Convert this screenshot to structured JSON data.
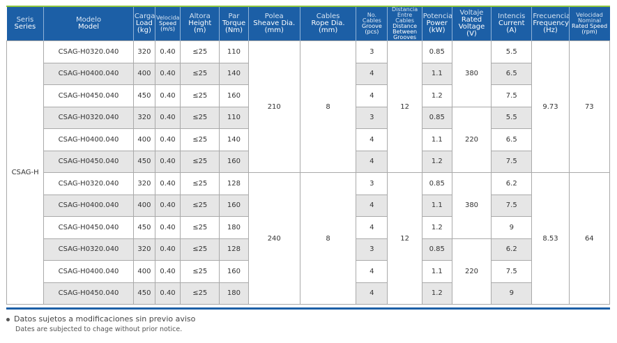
{
  "headers": [
    {
      "es": "Seris",
      "en": "Series"
    },
    {
      "es": "Modelo",
      "en": "Model"
    },
    {
      "es": "Carga",
      "en": "Load (kg)"
    },
    {
      "es": "Velocidad",
      "en": "Speed (m/s)"
    },
    {
      "es": "Altora",
      "en": "Height (m)"
    },
    {
      "es": "Par",
      "en": "Torque (Nm)"
    },
    {
      "es": "Polea",
      "en": "Sheave Dia. (mm)"
    },
    {
      "es": "Cables",
      "en": "Rope Dia. (mm)"
    },
    {
      "es": "No. Cables",
      "en": "Groove (pcs)"
    },
    {
      "es": "Distancia Entre Cables",
      "en": "Distance Between Grooves"
    },
    {
      "es": "Potencia",
      "en": "Power (kW)"
    },
    {
      "es": "Voltaje",
      "en": "Rated Voltage (V)"
    },
    {
      "es": "Intencis",
      "en": "Current (A)"
    },
    {
      "es": "Frecuencia",
      "en": "Frequency (Hz)"
    },
    {
      "es": "Velocidad Nominal",
      "en": "Rated Speed (rpm)"
    }
  ],
  "series": "CSAG-H",
  "rows": [
    {
      "model": "CSAG-H0320.040",
      "load": "320",
      "speed": "0.40",
      "height": "≤25",
      "torque": "110",
      "groove": "3",
      "power": "0.85",
      "current": "5.5"
    },
    {
      "model": "CSAG-H0400.040",
      "load": "400",
      "speed": "0.40",
      "height": "≤25",
      "torque": "140",
      "groove": "4",
      "power": "1.1",
      "current": "6.5"
    },
    {
      "model": "CSAG-H0450.040",
      "load": "450",
      "speed": "0.40",
      "height": "≤25",
      "torque": "160",
      "groove": "4",
      "power": "1.2",
      "current": "7.5"
    },
    {
      "model": "CSAG-H0320.040",
      "load": "320",
      "speed": "0.40",
      "height": "≤25",
      "torque": "110",
      "groove": "3",
      "power": "0.85",
      "current": "5.5"
    },
    {
      "model": "CSAG-H0400.040",
      "load": "400",
      "speed": "0.40",
      "height": "≤25",
      "torque": "140",
      "groove": "4",
      "power": "1.1",
      "current": "6.5"
    },
    {
      "model": "CSAG-H0450.040",
      "load": "450",
      "speed": "0.40",
      "height": "≤25",
      "torque": "160",
      "groove": "4",
      "power": "1.2",
      "current": "7.5"
    },
    {
      "model": "CSAG-H0320.040",
      "load": "320",
      "speed": "0.40",
      "height": "≤25",
      "torque": "128",
      "groove": "3",
      "power": "0.85",
      "current": "6.2"
    },
    {
      "model": "CSAG-H0400.040",
      "load": "400",
      "speed": "0.40",
      "height": "≤25",
      "torque": "160",
      "groove": "4",
      "power": "1.1",
      "current": "7.5"
    },
    {
      "model": "CSAG-H0450.040",
      "load": "450",
      "speed": "0.40",
      "height": "≤25",
      "torque": "180",
      "groove": "4",
      "power": "1.2",
      "current": "9"
    },
    {
      "model": "CSAG-H0320.040",
      "load": "320",
      "speed": "0.40",
      "height": "≤25",
      "torque": "128",
      "groove": "3",
      "power": "0.85",
      "current": "6.2"
    },
    {
      "model": "CSAG-H0400.040",
      "load": "400",
      "speed": "0.40",
      "height": "≤25",
      "torque": "160",
      "groove": "4",
      "power": "1.1",
      "current": "7.5"
    },
    {
      "model": "CSAG-H0450.040",
      "load": "450",
      "speed": "0.40",
      "height": "≤25",
      "torque": "180",
      "groove": "4",
      "power": "1.2",
      "current": "9"
    }
  ],
  "groups": [
    {
      "sheave": "210",
      "rope": "8",
      "distance": "12",
      "frequency": "9.73",
      "rated_speed": "73",
      "voltage_a": "380",
      "voltage_b": "220"
    },
    {
      "sheave": "240",
      "rope": "8",
      "distance": "12",
      "frequency": "8.53",
      "rated_speed": "64",
      "voltage_a": "380",
      "voltage_b": "220"
    }
  ],
  "notes": {
    "es": "Datos sujetos a modificaciones sin previo aviso",
    "en": "Dates are subjected to chage without prior notice."
  }
}
